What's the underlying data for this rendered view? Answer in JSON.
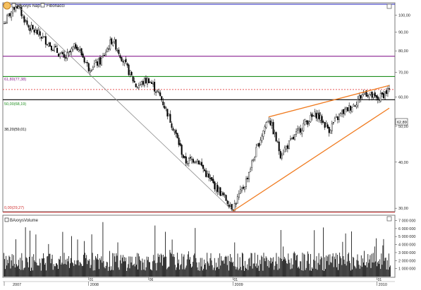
{
  "colors": {
    "panel_border": "#7a7a7a",
    "candle": "#000000",
    "trend": "#888888",
    "channel": "#f07a1e",
    "fib_top": "#2020c0",
    "fib_618": "#8a2090",
    "fib_50": "#1f8f1f",
    "fib_382": "#000000",
    "fib_0": "#d03030",
    "price_marker": "#e02020",
    "icon_fill": "#f5c060"
  },
  "price_panel": {
    "legend_series": "BAxxys Nap",
    "legend_tool": "Fibonacci",
    "current_price_label": "62,89",
    "fib_labels": {
      "l618": "61,80(77,38)",
      "l50": "50,00(68,19)",
      "l382": "38,20(59,01)",
      "l0": "0,00(29,27)"
    }
  },
  "volume_panel": {
    "legend_series": "BAxxysVolume"
  },
  "chart_data": [
    {
      "type": "candlestick",
      "title": "",
      "series_name": "BAxxys Nap",
      "y_scale": "log",
      "y_ticks": [
        30,
        40,
        50,
        60,
        70,
        80,
        90,
        100
      ],
      "y_tick_labels": [
        "30,00",
        "40,00",
        "50,00",
        "60,00",
        "70,00",
        "80,00",
        "90,00",
        "100,00"
      ],
      "x_month_ticks": [
        "01",
        "06",
        "01",
        "01"
      ],
      "x_year_labels": [
        "2007",
        "2008",
        "2009",
        "2010"
      ],
      "x_range": [
        "2007-06",
        "2010-02"
      ],
      "approx_path": [
        {
          "x": "2007-06",
          "y": 95
        },
        {
          "x": "2007-07",
          "y": 107
        },
        {
          "x": "2007-08",
          "y": 93
        },
        {
          "x": "2007-09",
          "y": 88
        },
        {
          "x": "2007-10",
          "y": 82
        },
        {
          "x": "2007-11",
          "y": 76
        },
        {
          "x": "2007-12",
          "y": 83
        },
        {
          "x": "2008-01",
          "y": 72
        },
        {
          "x": "2008-02",
          "y": 75
        },
        {
          "x": "2008-03",
          "y": 86
        },
        {
          "x": "2008-04",
          "y": 74
        },
        {
          "x": "2008-05",
          "y": 64
        },
        {
          "x": "2008-06",
          "y": 67
        },
        {
          "x": "2008-07",
          "y": 60
        },
        {
          "x": "2008-08",
          "y": 50
        },
        {
          "x": "2008-09",
          "y": 40
        },
        {
          "x": "2008-10",
          "y": 41
        },
        {
          "x": "2008-11",
          "y": 36
        },
        {
          "x": "2008-12",
          "y": 33
        },
        {
          "x": "2009-01",
          "y": 30
        },
        {
          "x": "2009-02",
          "y": 35
        },
        {
          "x": "2009-03",
          "y": 43
        },
        {
          "x": "2009-04",
          "y": 53
        },
        {
          "x": "2009-05",
          "y": 42
        },
        {
          "x": "2009-06",
          "y": 46
        },
        {
          "x": "2009-07",
          "y": 51
        },
        {
          "x": "2009-08",
          "y": 54
        },
        {
          "x": "2009-09",
          "y": 49
        },
        {
          "x": "2009-10",
          "y": 54
        },
        {
          "x": "2009-11",
          "y": 57
        },
        {
          "x": "2009-12",
          "y": 62
        },
        {
          "x": "2010-01",
          "y": 59
        },
        {
          "x": "2010-02",
          "y": 62.89
        }
      ],
      "fibonacci_levels": [
        {
          "label": "61,80(77,38)",
          "value": 77.38
        },
        {
          "label": "50,00(68,19)",
          "value": 68.19
        },
        {
          "label": "38,20(59,01)",
          "value": 59.01
        },
        {
          "label": "0,00(29,27)",
          "value": 29.27
        }
      ],
      "fibonacci_top": 107,
      "last_price": 62.89,
      "trendlines": [
        {
          "name": "downtrend",
          "from": {
            "x": "2007-07",
            "y": 107
          },
          "to": {
            "x": "2009-01",
            "y": 29.5
          }
        },
        {
          "name": "channel-upper",
          "from": {
            "x": "2009-04",
            "y": 53
          },
          "to": {
            "x": "2010-02",
            "y": 64.5
          }
        },
        {
          "name": "channel-lower",
          "from": {
            "x": "2009-01",
            "y": 29.5
          },
          "to": {
            "x": "2010-02",
            "y": 56
          }
        }
      ],
      "grid": false
    },
    {
      "type": "bar",
      "series_name": "BAxxysVolume",
      "y_ticks": [
        1000000,
        2000000,
        3000000,
        4000000,
        5000000,
        6000000,
        7000000
      ],
      "y_tick_labels": [
        "1 000 000",
        "2 000 000",
        "3 000 000",
        "4 000 000",
        "5 000 000",
        "6 000 000",
        "7 000 000"
      ],
      "typical_volume": 2000000,
      "peak_volume": 7000000,
      "grid": false
    }
  ]
}
